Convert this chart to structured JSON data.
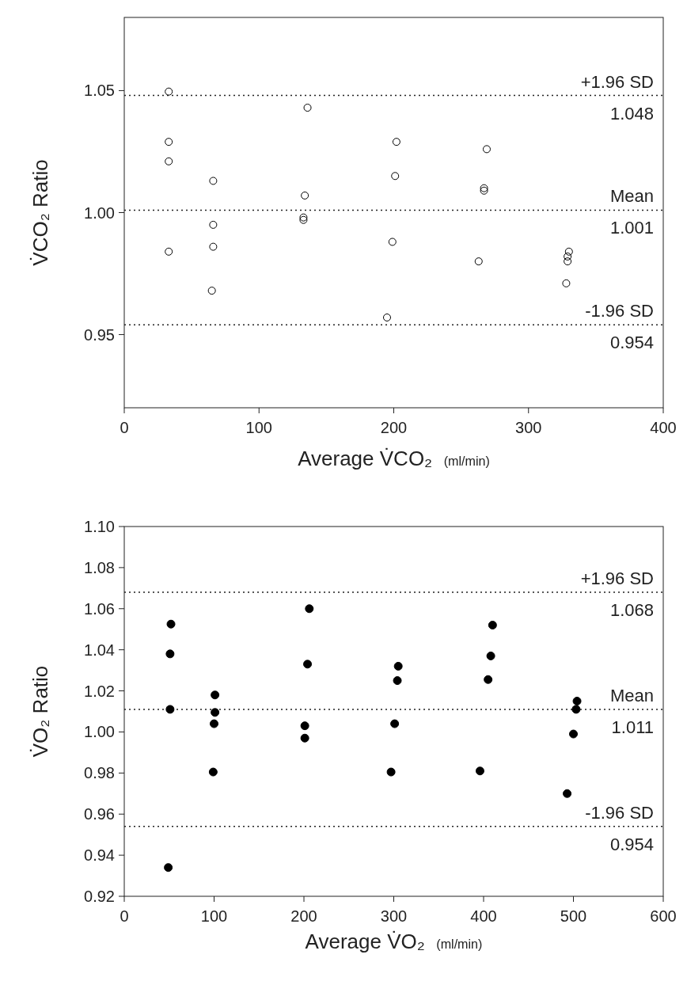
{
  "chart_data": [
    {
      "type": "scatter",
      "xlabel": "Average V̇CO₂  (ml/min)",
      "ylabel": "V̇CO₂ Ratio",
      "xlim": [
        0,
        400
      ],
      "xticks": [
        0,
        100,
        200,
        300,
        400
      ],
      "ylim": [
        0.92,
        1.08
      ],
      "yticks": [
        {
          "value": 0.95,
          "label": "0.95"
        },
        {
          "value": 1.0,
          "label": "1.00"
        },
        {
          "value": 1.05,
          "label": "1.05"
        }
      ],
      "marker": "circle",
      "grid": false,
      "annotations": [
        {
          "text": "1.048",
          "y": 1.048
        },
        {
          "text": "1.001",
          "y": 1.001
        },
        {
          "text": "0.954",
          "y": 0.954
        }
      ],
      "series": [
        {
          "color": "#000000",
          "x": [
            33,
            33,
            33,
            33,
            66,
            66,
            66,
            65,
            136,
            134,
            133,
            133,
            202,
            201,
            199,
            195,
            269,
            267,
            267,
            263,
            330,
            329,
            329,
            328
          ],
          "values": [
            1.0496,
            1.029,
            1.021,
            0.984,
            1.013,
            0.995,
            0.986,
            0.968,
            1.043,
            1.007,
            0.998,
            0.997,
            1.029,
            1.015,
            0.988,
            0.957,
            1.026,
            1.01,
            1.009,
            0.98,
            0.984,
            0.982,
            0.98,
            0.971
          ]
        }
      ],
      "ref_lines": [
        {
          "axis": "y",
          "value": 1.048,
          "label": "+1.96 SD",
          "line_style": "dotted"
        },
        {
          "axis": "y",
          "value": 1.001,
          "label": "Mean",
          "line_style": "dotted"
        },
        {
          "axis": "y",
          "value": 0.954,
          "label": "-1.96 SD",
          "line_style": "dotted"
        }
      ]
    },
    {
      "type": "scatter",
      "xlabel": "Average V̇O₂  (ml/min)",
      "ylabel": "V̇O₂ Ratio",
      "xlim": [
        0,
        600
      ],
      "xticks": [
        0,
        100,
        200,
        300,
        400,
        500,
        600
      ],
      "ylim": [
        0.92,
        1.1
      ],
      "yticks": [
        {
          "value": 0.92,
          "label": "0.92"
        },
        {
          "value": 0.94,
          "label": "0.94"
        },
        {
          "value": 0.96,
          "label": "0.96"
        },
        {
          "value": 0.98,
          "label": "0.98"
        },
        {
          "value": 1.0,
          "label": "1.00"
        },
        {
          "value": 1.02,
          "label": "1.02"
        },
        {
          "value": 1.04,
          "label": "1.04"
        },
        {
          "value": 1.06,
          "label": "1.06"
        },
        {
          "value": 1.08,
          "label": "1.08"
        },
        {
          "value": 1.1,
          "label": "1.10"
        }
      ],
      "marker": "circle",
      "grid": false,
      "annotations": [
        {
          "text": "1.068",
          "y": 1.068
        },
        {
          "text": "1.011",
          "y": 1.011
        },
        {
          "text": "0.954",
          "y": 0.954
        }
      ],
      "series": [
        {
          "color": "#000000",
          "x": [
            52,
            51,
            51,
            49,
            101,
            101,
            100,
            99,
            206,
            204,
            201,
            201,
            305,
            304,
            301,
            297,
            410,
            408,
            405,
            396,
            504,
            503,
            500,
            493
          ],
          "values": [
            1.0525,
            1.038,
            1.011,
            0.934,
            1.018,
            1.0095,
            1.004,
            0.9805,
            1.06,
            1.033,
            1.003,
            0.997,
            1.032,
            1.025,
            1.004,
            0.9805,
            1.052,
            1.037,
            1.0255,
            0.981,
            1.015,
            1.011,
            0.999,
            0.97
          ]
        }
      ],
      "ref_lines": [
        {
          "axis": "y",
          "value": 1.068,
          "label": "+1.96 SD",
          "line_style": "dotted"
        },
        {
          "axis": "y",
          "value": 1.011,
          "label": "Mean",
          "line_style": "dotted"
        },
        {
          "axis": "y",
          "value": 0.954,
          "label": "-1.96 SD",
          "line_style": "dotted"
        }
      ]
    }
  ]
}
